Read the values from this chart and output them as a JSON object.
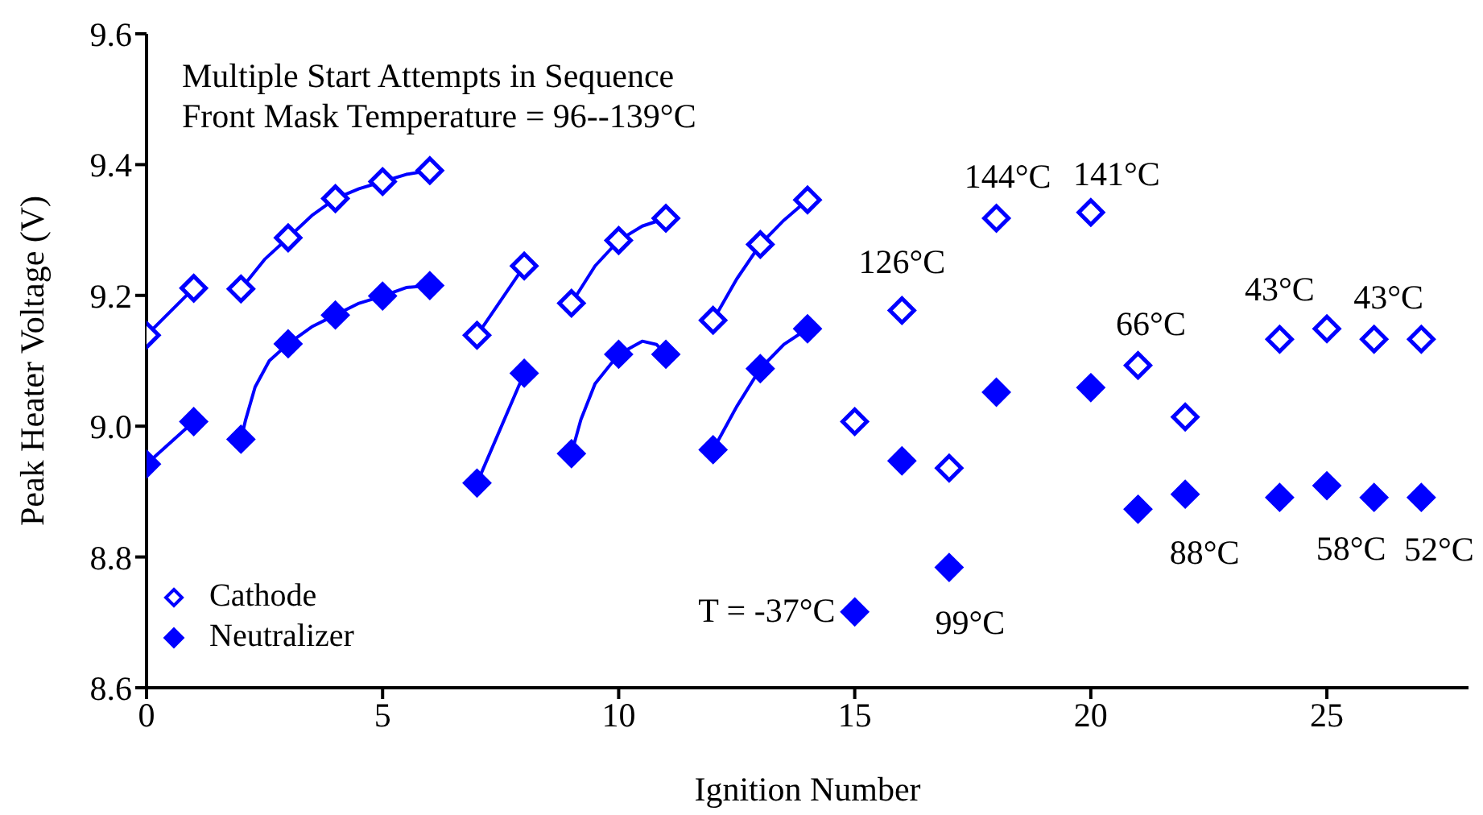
{
  "chart_data": {
    "type": "scatter",
    "title": "Multiple Start Attempts in Sequence",
    "subtitle": "Front Mask Temperature = 96--139°C",
    "xlabel": "Ignition Number",
    "ylabel": "Peak Heater Voltage (V)",
    "xlim": [
      0,
      28
    ],
    "xticks": [
      0,
      5,
      10,
      15,
      20,
      25
    ],
    "ylim": [
      8.6,
      9.6
    ],
    "yticks": [
      8.6,
      8.8,
      {
        "value": 9,
        "label": "9.0"
      },
      9.2,
      9.4,
      9.6
    ],
    "legend": "bottom left",
    "marker": "diamond",
    "series": [
      {
        "name": "Cathode",
        "color": "#0000ff",
        "x": [
          0,
          1,
          2,
          3,
          4,
          5,
          6,
          7,
          8,
          9,
          10,
          11,
          12,
          13,
          14,
          15,
          16,
          17,
          18,
          20,
          21,
          22,
          24,
          25,
          26,
          27
        ],
        "values": [
          9.139,
          9.211,
          9.21,
          9.288,
          9.348,
          9.374,
          9.391,
          9.139,
          9.245,
          9.188,
          9.284,
          9.318,
          9.162,
          9.278,
          9.346,
          9.007,
          9.177,
          8.936,
          9.318,
          9.327,
          9.093,
          9.014,
          9.133,
          9.149,
          9.133,
          9.133
        ]
      },
      {
        "name": "Neutralizer",
        "color": "#0000ff",
        "x": [
          0,
          1,
          2,
          3,
          4,
          5,
          6,
          7,
          8,
          9,
          10,
          11,
          12,
          13,
          14,
          15,
          16,
          17,
          18,
          20,
          21,
          22,
          24,
          25,
          26,
          27
        ],
        "values": [
          8.942,
          9.007,
          8.98,
          9.126,
          9.17,
          9.199,
          9.215,
          8.913,
          9.081,
          8.958,
          9.11,
          9.11,
          8.964,
          9.088,
          9.149,
          8.716,
          8.947,
          8.784,
          9.052,
          9.059,
          8.873,
          8.896,
          8.891,
          8.909,
          8.891,
          8.891
        ]
      },
      {
        "type": "line",
        "marker": "none",
        "color": "#0000ff",
        "x": [
          0,
          1,
          1.5,
          2,
          2.5,
          3,
          3.5,
          4,
          4.5,
          5,
          5.5,
          6,
          6.5,
          7,
          8,
          8.5,
          9,
          9.5,
          10,
          10.5,
          11,
          11.5,
          12,
          12.5,
          13,
          13.5,
          14
        ],
        "values": [
          9.139,
          9.211,
          null,
          9.21,
          9.255,
          9.288,
          9.322,
          9.348,
          9.363,
          9.374,
          9.385,
          9.391,
          null,
          9.139,
          9.245,
          null,
          9.188,
          9.245,
          9.284,
          9.306,
          9.318,
          null,
          9.162,
          9.225,
          9.278,
          9.315,
          9.346
        ]
      },
      {
        "type": "line",
        "marker": "none",
        "color": "#0000ff",
        "x": [
          0,
          1,
          1.5,
          2,
          2.1,
          2.3,
          2.6,
          3,
          3.5,
          4,
          4.5,
          5,
          5.5,
          6,
          6.5,
          7,
          8,
          8.5,
          9,
          9.2,
          9.5,
          10,
          10.5,
          10.8,
          11,
          11.5,
          12,
          12.5,
          13,
          13.5,
          14
        ],
        "values": [
          8.942,
          9.007,
          null,
          8.98,
          9.01,
          9.06,
          9.1,
          9.126,
          9.152,
          9.17,
          9.188,
          9.199,
          9.212,
          9.215,
          null,
          8.913,
          9.081,
          null,
          8.958,
          9.01,
          9.065,
          9.11,
          9.13,
          9.125,
          9.11,
          null,
          8.964,
          9.03,
          9.088,
          9.125,
          9.149
        ]
      }
    ],
    "annotations": [
      {
        "text": "T = -37°C",
        "x": 15,
        "y": 8.716
      },
      {
        "text": "126°C",
        "x": 16,
        "y": 9.177
      },
      {
        "text": "144°C",
        "x": 18,
        "y": 9.318
      },
      {
        "text": "141°C",
        "x": 20,
        "y": 9.327
      },
      {
        "text": "66°C",
        "x": 21,
        "y": 9.093
      },
      {
        "text": "43°C",
        "x": 24,
        "y": 9.133
      },
      {
        "text": "43°C",
        "x": 26,
        "y": 9.133
      },
      {
        "text": "88°C",
        "x": 22,
        "y": 8.896
      },
      {
        "text": "58°C",
        "x": 25,
        "y": 8.909
      },
      {
        "text": "52°C",
        "x": 27,
        "y": 8.891
      },
      {
        "text": "99°C",
        "x": 17,
        "y": 8.784
      }
    ]
  }
}
